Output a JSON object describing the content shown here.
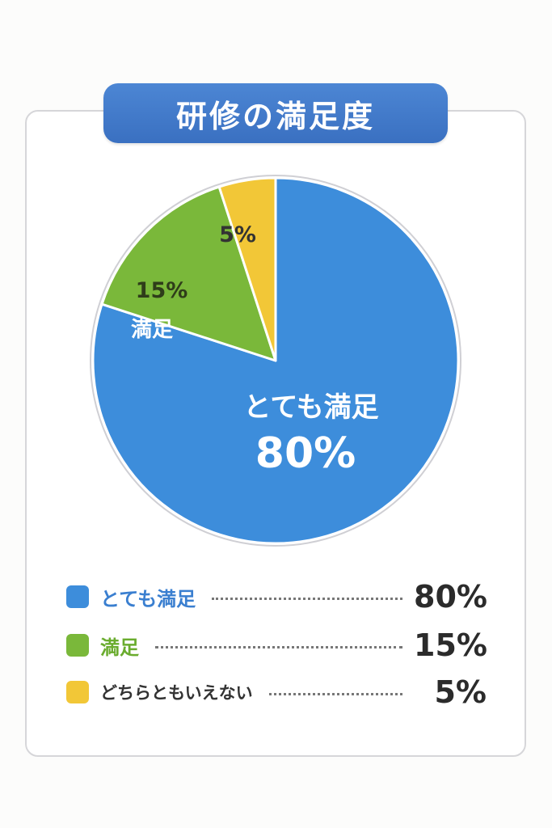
{
  "header": {
    "title": "研修の満足度"
  },
  "chart_data": {
    "type": "pie",
    "title": "研修の満足度",
    "slices": [
      {
        "label": "とても満足",
        "value": 80,
        "display": "80%",
        "color": "#3d8ddb",
        "legend_color": "#3a7fd0",
        "text_color": "#ffffff"
      },
      {
        "label": "満足",
        "value": 15,
        "display": "15%",
        "color": "#7ab83a",
        "legend_color": "#6aac2e",
        "text_color": "#ffffff"
      },
      {
        "label": "どちらともいえない",
        "value": 5,
        "display": "5%",
        "color": "#f2c737",
        "legend_color": "#333333",
        "text_color": "#333333"
      }
    ],
    "legend_position": "bottom"
  }
}
